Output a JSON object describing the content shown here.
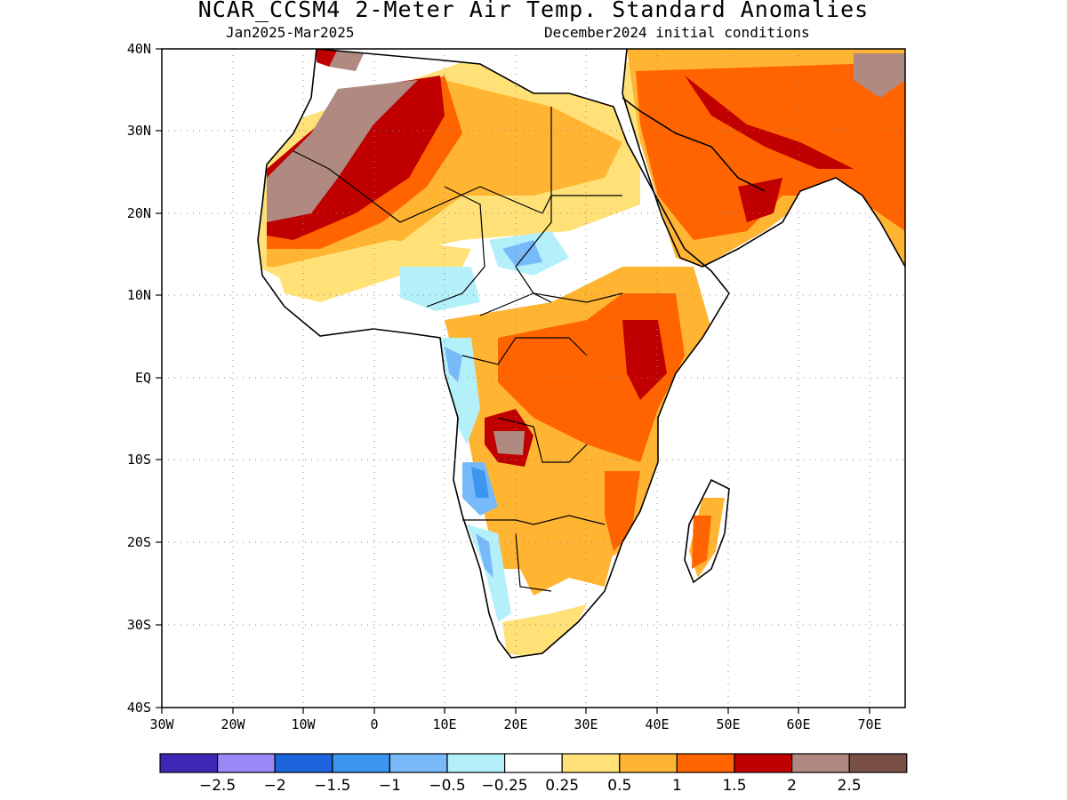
{
  "header": {
    "title": "NCAR_CCSM4 2-Meter Air Temp. Standard Anomalies",
    "period": "Jan2025-Mar2025",
    "init": "December2024 initial conditions"
  },
  "map": {
    "region": "Africa and Middle East",
    "lon_labels": [
      "30W",
      "20W",
      "10W",
      "0",
      "10E",
      "20E",
      "30E",
      "40E",
      "50E",
      "60E",
      "70E"
    ],
    "lat_labels": [
      "40N",
      "30N",
      "20N",
      "10N",
      "EQ",
      "10S",
      "20S",
      "30S",
      "40S"
    ],
    "gridlines": true
  },
  "colorbar": {
    "colors": [
      "#3c28b4",
      "#9b87f5",
      "#1e64dc",
      "#3c96f0",
      "#78b9fa",
      "#b4f0fa",
      "#ffffff",
      "#ffe178",
      "#ffb432",
      "#ff6400",
      "#c00000",
      "#b08a80",
      "#7a5046"
    ],
    "labels": [
      "-2.5",
      "-2",
      "-1.5",
      "-1",
      "-0.5",
      "-0.25",
      "0.25",
      "0.5",
      "1",
      "1.5",
      "2",
      "2.5"
    ]
  }
}
